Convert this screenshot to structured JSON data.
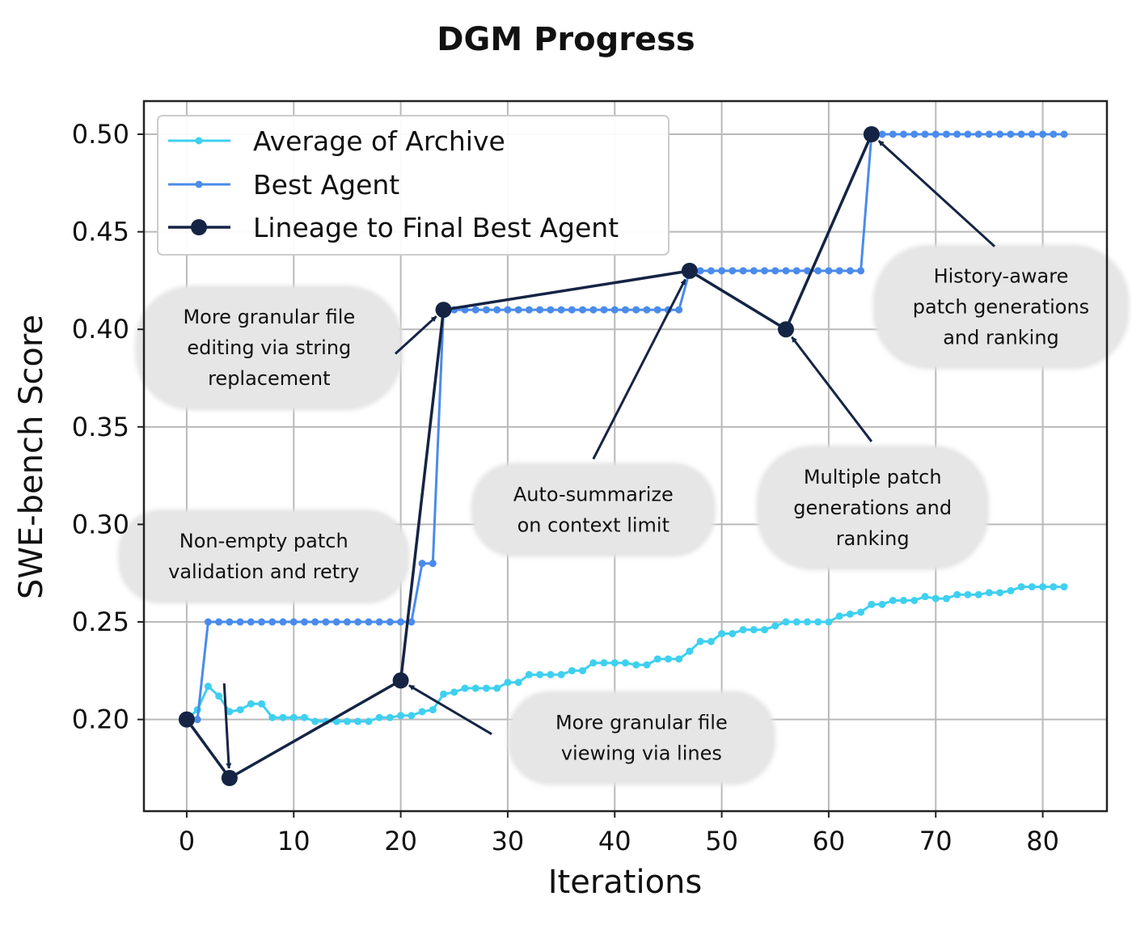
{
  "chart_data": {
    "type": "line",
    "title": "DGM Progress",
    "xlabel": "Iterations",
    "ylabel": "SWE-bench Score",
    "xlim": [
      -4,
      86
    ],
    "ylim": [
      0.153,
      0.517
    ],
    "xticks": [
      0,
      10,
      20,
      30,
      40,
      50,
      60,
      70,
      80
    ],
    "yticks": [
      0.2,
      0.25,
      0.3,
      0.35,
      0.4,
      0.45,
      0.5
    ],
    "xtick_labels": [
      "0",
      "10",
      "20",
      "30",
      "40",
      "50",
      "60",
      "70",
      "80"
    ],
    "ytick_labels": [
      "0.20",
      "0.25",
      "0.30",
      "0.35",
      "0.40",
      "0.45",
      "0.50"
    ],
    "grid": true,
    "legend_position": "top-left",
    "series": [
      {
        "name": "Average of Archive",
        "color": "#3fd0ef",
        "x": [
          0,
          1,
          2,
          3,
          4,
          5,
          6,
          7,
          8,
          9,
          10,
          11,
          12,
          13,
          14,
          15,
          16,
          17,
          18,
          19,
          20,
          21,
          22,
          23,
          24,
          25,
          26,
          27,
          28,
          29,
          30,
          31,
          32,
          33,
          34,
          35,
          36,
          37,
          38,
          39,
          40,
          41,
          42,
          43,
          44,
          45,
          46,
          47,
          48,
          49,
          50,
          51,
          52,
          53,
          54,
          55,
          56,
          57,
          58,
          59,
          60,
          61,
          62,
          63,
          64,
          65,
          66,
          67,
          68,
          69,
          70,
          71,
          72,
          73,
          74,
          75,
          76,
          77,
          78,
          79,
          80,
          81,
          82
        ],
        "y": [
          0.2,
          0.205,
          0.217,
          0.212,
          0.204,
          0.205,
          0.208,
          0.208,
          0.201,
          0.201,
          0.201,
          0.201,
          0.199,
          0.199,
          0.199,
          0.199,
          0.199,
          0.199,
          0.201,
          0.201,
          0.202,
          0.202,
          0.204,
          0.205,
          0.213,
          0.214,
          0.216,
          0.216,
          0.216,
          0.216,
          0.219,
          0.219,
          0.223,
          0.223,
          0.223,
          0.223,
          0.225,
          0.225,
          0.229,
          0.229,
          0.229,
          0.229,
          0.228,
          0.228,
          0.231,
          0.231,
          0.231,
          0.235,
          0.24,
          0.24,
          0.244,
          0.244,
          0.246,
          0.246,
          0.246,
          0.248,
          0.25,
          0.25,
          0.25,
          0.25,
          0.25,
          0.253,
          0.254,
          0.255,
          0.259,
          0.259,
          0.261,
          0.261,
          0.261,
          0.263,
          0.262,
          0.262,
          0.264,
          0.264,
          0.264,
          0.265,
          0.265,
          0.266,
          0.268,
          0.268,
          0.268,
          0.268,
          0.268
        ]
      },
      {
        "name": "Best Agent",
        "color": "#4a8bea",
        "x": [
          1,
          2,
          3,
          4,
          5,
          6,
          7,
          8,
          9,
          10,
          11,
          12,
          13,
          14,
          15,
          16,
          17,
          18,
          19,
          20,
          21,
          22,
          23,
          24,
          25,
          26,
          27,
          28,
          29,
          30,
          31,
          32,
          33,
          34,
          35,
          36,
          37,
          38,
          39,
          40,
          41,
          42,
          43,
          44,
          45,
          46,
          47,
          48,
          49,
          50,
          51,
          52,
          53,
          54,
          55,
          56,
          57,
          58,
          59,
          60,
          61,
          62,
          63,
          64,
          65,
          66,
          67,
          68,
          69,
          70,
          71,
          72,
          73,
          74,
          75,
          76,
          77,
          78,
          79,
          80,
          81,
          82
        ],
        "y": [
          0.2,
          0.25,
          0.25,
          0.25,
          0.25,
          0.25,
          0.25,
          0.25,
          0.25,
          0.25,
          0.25,
          0.25,
          0.25,
          0.25,
          0.25,
          0.25,
          0.25,
          0.25,
          0.25,
          0.25,
          0.25,
          0.28,
          0.28,
          0.41,
          0.41,
          0.41,
          0.41,
          0.41,
          0.41,
          0.41,
          0.41,
          0.41,
          0.41,
          0.41,
          0.41,
          0.41,
          0.41,
          0.41,
          0.41,
          0.41,
          0.41,
          0.41,
          0.41,
          0.41,
          0.41,
          0.41,
          0.43,
          0.43,
          0.43,
          0.43,
          0.43,
          0.43,
          0.43,
          0.43,
          0.43,
          0.43,
          0.43,
          0.43,
          0.43,
          0.43,
          0.43,
          0.43,
          0.43,
          0.5,
          0.5,
          0.5,
          0.5,
          0.5,
          0.5,
          0.5,
          0.5,
          0.5,
          0.5,
          0.5,
          0.5,
          0.5,
          0.5,
          0.5,
          0.5,
          0.5,
          0.5,
          0.5
        ]
      },
      {
        "name": "Lineage to Final Best Agent",
        "color": "#152444",
        "x": [
          0,
          4,
          20,
          24,
          47,
          56,
          64
        ],
        "y": [
          0.2,
          0.17,
          0.22,
          0.41,
          0.43,
          0.4,
          0.5
        ]
      }
    ],
    "annotations": [
      {
        "lines": [
          "Non-empty patch",
          "validation and retry"
        ],
        "target": [
          4,
          0.17
        ],
        "arrow_from": [
          3.5,
          0.2185
        ],
        "box_center": [
          7.2,
          0.2835
        ]
      },
      {
        "lines": [
          "More granular file",
          "editing via string",
          "replacement"
        ],
        "target": [
          24,
          0.41
        ],
        "arrow_from": [
          19.5,
          0.3875
        ],
        "box_center": [
          7.7,
          0.3905
        ]
      },
      {
        "lines": [
          "Auto-summarize",
          "on context limit"
        ],
        "target": [
          47,
          0.43
        ],
        "arrow_from": [
          38,
          0.3335
        ],
        "box_center": [
          38,
          0.3075
        ]
      },
      {
        "lines": [
          "More granular file",
          "viewing via lines"
        ],
        "target": [
          20,
          0.22
        ],
        "arrow_from": [
          28.5,
          0.1925
        ],
        "box_center": [
          42.5,
          0.1905
        ]
      },
      {
        "lines": [
          "Multiple patch",
          "generations and",
          "ranking"
        ],
        "target": [
          56,
          0.4
        ],
        "arrow_from": [
          64,
          0.3425
        ],
        "box_center": [
          64.1,
          0.3085
        ]
      },
      {
        "lines": [
          "History-aware",
          "patch generations",
          "and ranking"
        ],
        "target": [
          64,
          0.5
        ],
        "arrow_from": [
          75.5,
          0.4425
        ],
        "box_center": [
          76.1,
          0.4115
        ]
      }
    ]
  }
}
